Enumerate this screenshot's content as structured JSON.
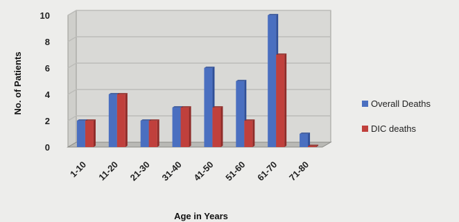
{
  "chart_data": {
    "type": "bar",
    "title": "",
    "xlabel": "Age in Years",
    "ylabel": "No. of Patients",
    "categories": [
      "1-10",
      "11-20",
      "21-30",
      "31-40",
      "41-50",
      "51-60",
      "61-70",
      "71-80"
    ],
    "series": [
      {
        "name": "Overall Deaths",
        "values": [
          2,
          4,
          2,
          3,
          6,
          5,
          10,
          1
        ]
      },
      {
        "name": "DIC deaths",
        "values": [
          2,
          4,
          2,
          3,
          3,
          2,
          7,
          0
        ]
      }
    ],
    "ylim": [
      0,
      10
    ],
    "yticks": [
      "0",
      "2",
      "4",
      "6",
      "8",
      "10"
    ],
    "grid": true,
    "legend_position": "right",
    "colors": {
      "series": [
        "#4a6fc0",
        "#c0403c"
      ],
      "series_side": [
        "#2f4f98",
        "#8f2b28"
      ],
      "grid": "#bcbcb8",
      "wall": "#d9d9d6"
    }
  }
}
